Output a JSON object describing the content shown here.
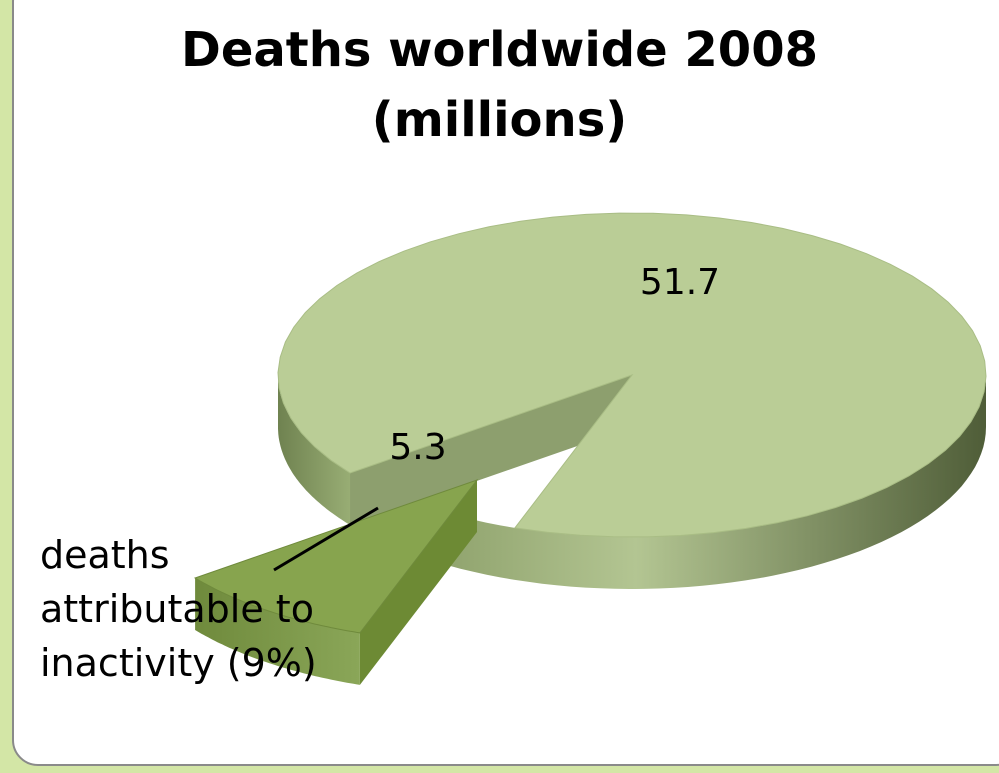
{
  "chart_data": {
    "type": "pie",
    "title_lines": [
      "Deaths worldwide 2008",
      "(millions)"
    ],
    "slices": [
      {
        "label": "51.7",
        "value": 51.7,
        "color": "#bacd96",
        "exploded": false
      },
      {
        "label": "5.3",
        "value": 5.3,
        "color": "#87a44e",
        "exploded": true
      }
    ],
    "annotation_lines": [
      "deaths",
      "attributable to",
      "inactivity (9%)"
    ],
    "style": "3d"
  }
}
